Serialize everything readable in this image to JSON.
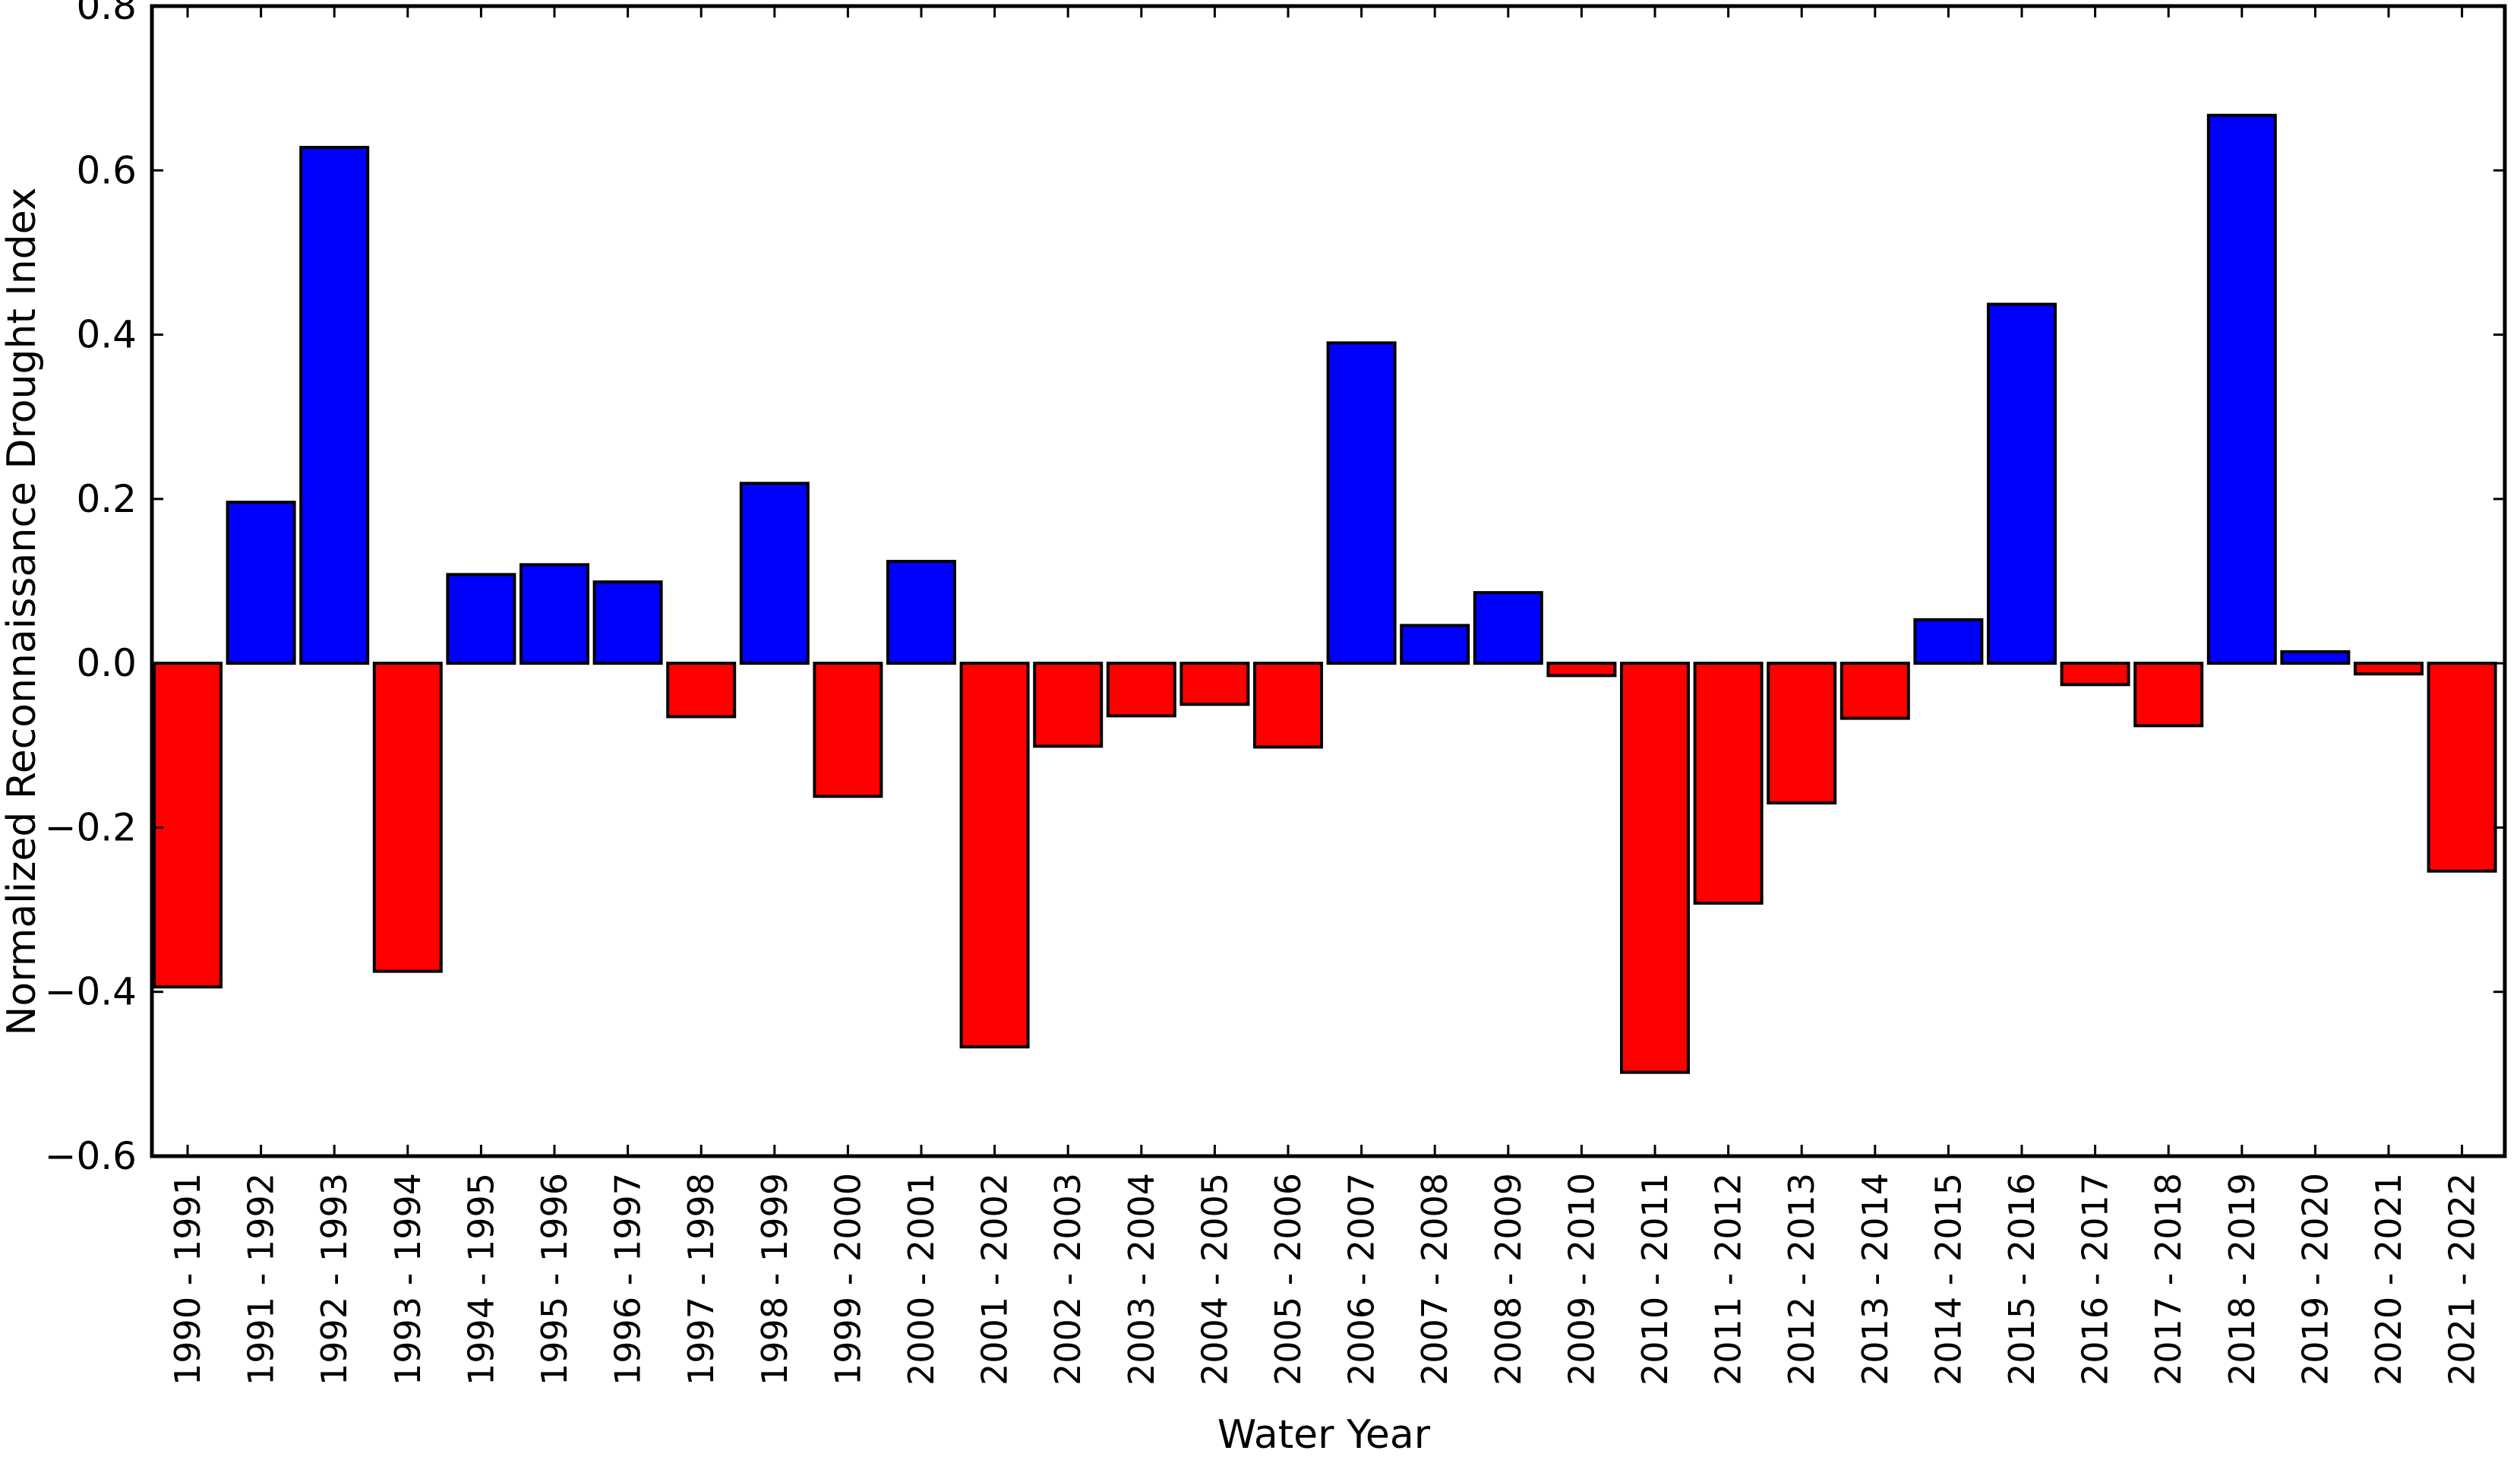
{
  "chart_data": {
    "type": "bar",
    "title": "",
    "xlabel": "Water Year",
    "ylabel": "Normalized Reconnaissance Drought Index",
    "ylim": [
      -0.6,
      0.8
    ],
    "yticks": [
      "0.8",
      "0.6",
      "0.4",
      "0.2",
      "0.0",
      "−0.2",
      "−0.4",
      "−0.6"
    ],
    "ytick_values": [
      0.8,
      0.6,
      0.4,
      0.2,
      0.0,
      -0.2,
      -0.4,
      -0.6
    ],
    "grid": false,
    "legend": null,
    "colors": {
      "positive": "#0000ff",
      "negative": "#ff0000",
      "edge": "#000000"
    },
    "categories": [
      "1990 - 1991",
      "1991 - 1992",
      "1992 - 1993",
      "1993 - 1994",
      "1994 - 1995",
      "1995 - 1996",
      "1996 - 1997",
      "1997 - 1998",
      "1998 - 1999",
      "1999 - 2000",
      "2000 - 2001",
      "2001 - 2002",
      "2002 - 2003",
      "2003 - 2004",
      "2004 - 2005",
      "2005 - 2006",
      "2006 - 2007",
      "2007 - 2008",
      "2008 - 2009",
      "2009 - 2010",
      "2010 - 2011",
      "2011 - 2012",
      "2012 - 2013",
      "2013 - 2014",
      "2014 - 2015",
      "2015 - 2016",
      "2016 - 2017",
      "2017 - 2018",
      "2018 - 2019",
      "2019 - 2020",
      "2020 - 2021",
      "2021 - 2022"
    ],
    "values": [
      -0.394,
      0.196,
      0.628,
      -0.375,
      0.108,
      0.12,
      0.099,
      -0.065,
      0.219,
      -0.162,
      0.124,
      -0.467,
      -0.101,
      -0.064,
      -0.05,
      -0.102,
      0.39,
      0.046,
      0.086,
      -0.015,
      -0.498,
      -0.292,
      -0.17,
      -0.067,
      0.053,
      0.437,
      -0.026,
      -0.076,
      0.667,
      0.014,
      -0.013,
      -0.253
    ]
  }
}
